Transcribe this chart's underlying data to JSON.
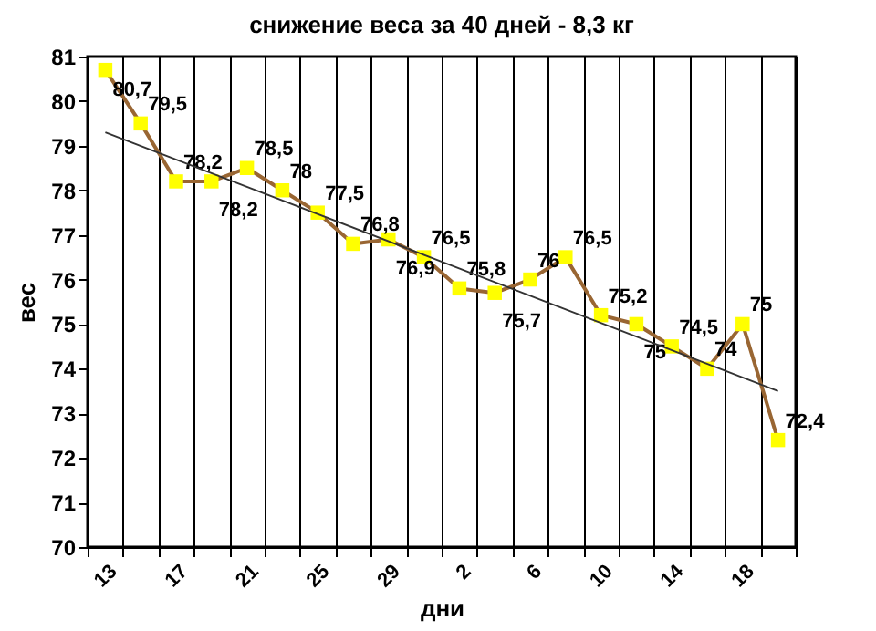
{
  "chart_data": {
    "type": "line",
    "title": "снижение веса за 40 дней - 8,3 кг",
    "xlabel": "дни",
    "ylabel": "вес",
    "categories": [
      "13",
      null,
      "17",
      null,
      "21",
      null,
      "25",
      null,
      "29",
      null,
      "2",
      null,
      "6",
      null,
      "10",
      null,
      "14",
      null,
      "18",
      null
    ],
    "series": [
      {
        "color": "#996633",
        "colors": [
          "#ffff00",
          "#ffff00",
          "#ffff00",
          "#ffff00",
          "#ffff00",
          "#ffff00",
          "#ffff00",
          "#ffff00",
          "#ffff00",
          "#ffff00",
          "#ffff00",
          "#ffff00",
          "#ffff00",
          "#ffff00",
          "#ffff00",
          "#ffff00",
          "#ffff00",
          "#ffff00",
          "#ffff00",
          "#ffff00"
        ],
        "marker": "square",
        "line_style": "solid",
        "values": [
          80.7,
          79.5,
          78.2,
          78.2,
          78.5,
          78,
          77.5,
          76.8,
          76.9,
          76.5,
          75.8,
          75.7,
          76,
          76.5,
          75.2,
          75,
          74.5,
          74,
          75,
          72.4
        ],
        "value_labels": [
          "80,7",
          "79,5",
          "78,2",
          "78,2",
          "78,5",
          "78",
          "77,5",
          "76,8",
          "76,9",
          "76,5",
          "75,8",
          "75,7",
          "76",
          "76,5",
          "75,2",
          "75",
          "74,5",
          "74",
          "75",
          "72,4"
        ]
      },
      {
        "color": "#333333",
        "marker": "none",
        "line_style": "solid",
        "values": [
          79.3,
          null,
          null,
          null,
          null,
          null,
          null,
          null,
          null,
          null,
          null,
          null,
          null,
          null,
          null,
          null,
          null,
          null,
          null,
          73.5
        ]
      }
    ],
    "ylim": [
      70,
      81
    ],
    "yticks": [
      70,
      71,
      72,
      73,
      74,
      75,
      76,
      77,
      78,
      79,
      80,
      81
    ],
    "grid": "x",
    "legend": false
  }
}
